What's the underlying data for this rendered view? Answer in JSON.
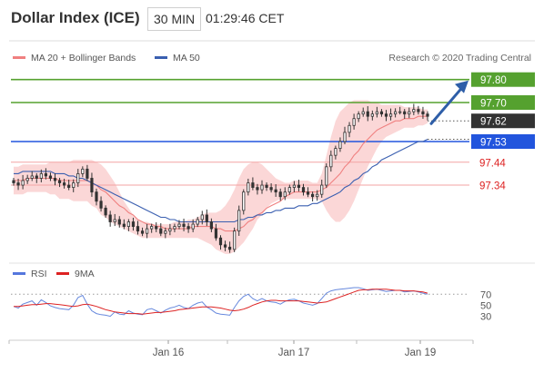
{
  "header": {
    "title": "Dollar Index (ICE)",
    "interval": "30 MIN",
    "time": "01:29:46 CET"
  },
  "legend": {
    "items": [
      {
        "label": "MA 20 + Bollinger Bands",
        "color": "#f08080"
      },
      {
        "label": "MA 50",
        "color": "#3a5fb0"
      }
    ],
    "research": "Research © 2020 Trading Central"
  },
  "levels": [
    {
      "value": 97.8,
      "label": "97.80",
      "color": "#55a12f",
      "style": "tag"
    },
    {
      "value": 97.7,
      "label": "97.70",
      "color": "#55a12f",
      "style": "tag"
    },
    {
      "value": 97.62,
      "label": "97.62",
      "color": "#333333",
      "style": "tag"
    },
    {
      "value": 97.53,
      "label": "97.53",
      "color": "#2255dd",
      "style": "tag"
    },
    {
      "value": 97.44,
      "label": "97.44",
      "color": "#dd2222",
      "style": "text"
    },
    {
      "value": 97.34,
      "label": "97.34",
      "color": "#dd2222",
      "style": "text"
    }
  ],
  "rsi_legend": [
    {
      "label": "RSI",
      "color": "#5577dd"
    },
    {
      "label": "9MA",
      "color": "#dd2222"
    }
  ],
  "rsi_ticks": [
    "70",
    "50",
    "30"
  ],
  "x_ticks": [
    "Jan 16",
    "Jan 17",
    "Jan 19"
  ],
  "chart_data": {
    "type": "candlestick",
    "title": "Dollar Index (ICE)",
    "ylim": [
      97.02,
      97.87
    ],
    "x_ticks": [
      "Jan 16",
      "Jan 17",
      "Jan 19"
    ],
    "close": [
      97.35,
      97.34,
      97.36,
      97.37,
      97.38,
      97.37,
      97.39,
      97.38,
      97.37,
      97.36,
      97.35,
      97.34,
      97.33,
      97.35,
      97.39,
      97.41,
      97.37,
      97.31,
      97.27,
      97.24,
      97.21,
      97.18,
      97.19,
      97.17,
      97.16,
      97.18,
      97.16,
      97.14,
      97.13,
      97.15,
      97.16,
      97.15,
      97.13,
      97.14,
      97.15,
      97.16,
      97.17,
      97.16,
      97.15,
      97.17,
      97.19,
      97.21,
      97.18,
      97.15,
      97.11,
      97.08,
      97.07,
      97.06,
      97.14,
      97.23,
      97.31,
      97.35,
      97.33,
      97.32,
      97.34,
      97.33,
      97.32,
      97.31,
      97.29,
      97.31,
      97.33,
      97.34,
      97.33,
      97.31,
      97.3,
      97.29,
      97.3,
      97.34,
      97.42,
      97.47,
      97.5,
      97.53,
      97.57,
      97.6,
      97.63,
      97.65,
      97.66,
      97.64,
      97.65,
      97.66,
      97.65,
      97.64,
      97.65,
      97.66,
      97.66,
      97.65,
      97.66,
      97.67,
      97.66,
      97.65,
      97.64
    ],
    "ma20": [
      97.36,
      97.36,
      97.36,
      97.37,
      97.37,
      97.37,
      97.37,
      97.37,
      97.37,
      97.37,
      97.36,
      97.36,
      97.36,
      97.36,
      97.36,
      97.36,
      97.36,
      97.35,
      97.34,
      97.32,
      97.31,
      97.29,
      97.27,
      97.25,
      97.24,
      97.22,
      97.21,
      97.19,
      97.18,
      97.17,
      97.17,
      97.16,
      97.16,
      97.15,
      97.15,
      97.15,
      97.15,
      97.15,
      97.15,
      97.16,
      97.16,
      97.16,
      97.16,
      97.16,
      97.15,
      97.15,
      97.14,
      97.14,
      97.14,
      97.15,
      97.16,
      97.18,
      97.19,
      97.21,
      97.22,
      97.24,
      97.25,
      97.26,
      97.27,
      97.29,
      97.3,
      97.31,
      97.31,
      97.31,
      97.31,
      97.31,
      97.31,
      97.32,
      97.33,
      97.35,
      97.37,
      97.39,
      97.42,
      97.44,
      97.47,
      97.49,
      97.52,
      97.54,
      97.56,
      97.58,
      97.59,
      97.6,
      97.61,
      97.62,
      97.62,
      97.63,
      97.63,
      97.63,
      97.64,
      97.64,
      97.64
    ],
    "ma50": [
      97.39,
      97.39,
      97.4,
      97.4,
      97.4,
      97.4,
      97.4,
      97.4,
      97.4,
      97.39,
      97.39,
      97.39,
      97.38,
      97.38,
      97.37,
      97.37,
      97.36,
      97.35,
      97.34,
      97.33,
      97.32,
      97.31,
      97.3,
      97.29,
      97.28,
      97.27,
      97.26,
      97.25,
      97.24,
      97.23,
      97.22,
      97.21,
      97.2,
      97.2,
      97.19,
      97.19,
      97.18,
      97.18,
      97.18,
      97.18,
      97.18,
      97.18,
      97.18,
      97.18,
      97.18,
      97.18,
      97.18,
      97.18,
      97.18,
      97.19,
      97.19,
      97.2,
      97.2,
      97.21,
      97.21,
      97.22,
      97.22,
      97.23,
      97.23,
      97.24,
      97.24,
      97.24,
      97.25,
      97.25,
      97.25,
      97.26,
      97.26,
      97.27,
      97.28,
      97.29,
      97.3,
      97.31,
      97.33,
      97.34,
      97.36,
      97.37,
      97.39,
      97.4,
      97.42,
      97.43,
      97.45,
      97.46,
      97.47,
      97.48,
      97.49,
      97.5,
      97.51,
      97.52,
      97.53,
      97.53,
      97.54
    ],
    "bb_upper": [
      97.42,
      97.42,
      97.43,
      97.43,
      97.43,
      97.43,
      97.43,
      97.43,
      97.44,
      97.44,
      97.44,
      97.44,
      97.44,
      97.45,
      97.45,
      97.45,
      97.45,
      97.45,
      97.44,
      97.43,
      97.41,
      97.38,
      97.35,
      97.31,
      97.27,
      97.24,
      97.21,
      97.19,
      97.18,
      97.18,
      97.17,
      97.17,
      97.17,
      97.17,
      97.17,
      97.18,
      97.18,
      97.18,
      97.19,
      97.19,
      97.2,
      97.21,
      97.22,
      97.22,
      97.22,
      97.23,
      97.25,
      97.28,
      97.32,
      97.37,
      97.41,
      97.43,
      97.44,
      97.44,
      97.43,
      97.41,
      97.39,
      97.37,
      97.36,
      97.35,
      97.35,
      97.36,
      97.36,
      97.36,
      97.36,
      97.35,
      97.35,
      97.39,
      97.47,
      97.55,
      97.62,
      97.66,
      97.68,
      97.7,
      97.71,
      97.71,
      97.71,
      97.71,
      97.7,
      97.7,
      97.69,
      97.69,
      97.69,
      97.69,
      97.69,
      97.68,
      97.68,
      97.68,
      97.68,
      97.67,
      97.67
    ],
    "bb_lower": [
      97.3,
      97.3,
      97.3,
      97.31,
      97.31,
      97.31,
      97.31,
      97.31,
      97.3,
      97.3,
      97.28,
      97.28,
      97.28,
      97.27,
      97.27,
      97.27,
      97.27,
      97.25,
      97.24,
      97.21,
      97.2,
      97.18,
      97.17,
      97.16,
      97.15,
      97.14,
      97.13,
      97.12,
      97.11,
      97.11,
      97.11,
      97.11,
      97.11,
      97.11,
      97.11,
      97.11,
      97.11,
      97.11,
      97.11,
      97.11,
      97.11,
      97.1,
      97.09,
      97.08,
      97.06,
      97.05,
      97.04,
      97.04,
      97.05,
      97.07,
      97.09,
      97.12,
      97.15,
      97.19,
      97.21,
      97.24,
      97.26,
      97.27,
      97.28,
      97.28,
      97.28,
      97.28,
      97.28,
      97.28,
      97.28,
      97.28,
      97.28,
      97.27,
      97.23,
      97.2,
      97.18,
      97.18,
      97.2,
      97.23,
      97.27,
      97.32,
      97.37,
      97.42,
      97.46,
      97.5,
      97.53,
      97.55,
      97.56,
      97.57,
      97.58,
      97.59,
      97.59,
      97.59,
      97.6,
      97.6,
      97.61
    ],
    "rsi": [
      48,
      45,
      52,
      55,
      58,
      50,
      60,
      55,
      49,
      46,
      44,
      43,
      42,
      50,
      64,
      68,
      52,
      40,
      35,
      33,
      32,
      30,
      38,
      34,
      33,
      40,
      36,
      34,
      33,
      42,
      44,
      40,
      36,
      41,
      45,
      47,
      50,
      46,
      44,
      50,
      54,
      56,
      47,
      42,
      36,
      34,
      33,
      32,
      46,
      58,
      66,
      70,
      62,
      58,
      62,
      58,
      56,
      55,
      52,
      57,
      60,
      61,
      58,
      54,
      52,
      50,
      53,
      62,
      72,
      76,
      78,
      79,
      80,
      81,
      82,
      82,
      80,
      77,
      78,
      79,
      77,
      75,
      76,
      77,
      77,
      74,
      75,
      76,
      74,
      72,
      70
    ],
    "rsi_ma": [
      48,
      48,
      49,
      50,
      51,
      51,
      52,
      53,
      53,
      52,
      51,
      50,
      49,
      48,
      49,
      51,
      52,
      50,
      48,
      45,
      42,
      40,
      38,
      37,
      36,
      35,
      35,
      35,
      34,
      35,
      36,
      37,
      37,
      38,
      39,
      40,
      42,
      43,
      44,
      45,
      46,
      47,
      47,
      47,
      46,
      45,
      43,
      41,
      40,
      41,
      43,
      46,
      50,
      53,
      56,
      58,
      59,
      59,
      58,
      58,
      58,
      58,
      58,
      57,
      56,
      55,
      54,
      55,
      56,
      59,
      62,
      65,
      68,
      71,
      74,
      77,
      78,
      78,
      79,
      79,
      79,
      79,
      78,
      77,
      77,
      76,
      76,
      76,
      75,
      74,
      72
    ]
  }
}
